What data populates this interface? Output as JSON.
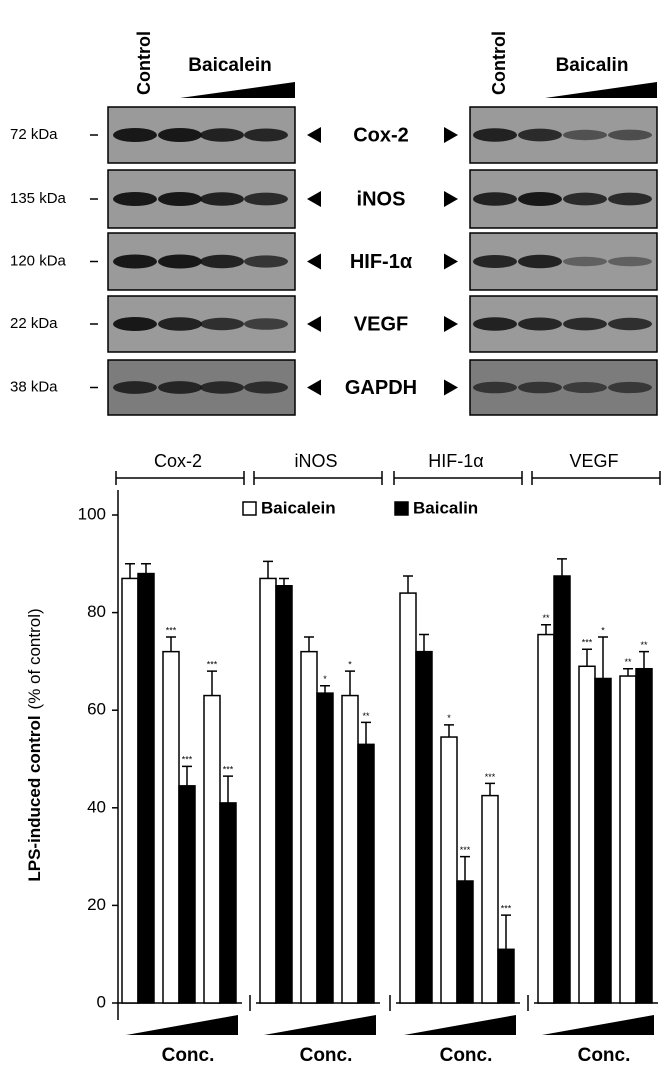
{
  "blots": {
    "left": {
      "control": "Control",
      "treatment": "Baicalein"
    },
    "right": {
      "control": "Control",
      "treatment": "Baicalin"
    },
    "markers": [
      "72 kDa",
      "135 kDa",
      "120 kDa",
      "22 kDa",
      "38 kDa"
    ],
    "proteins": [
      "Cox-2",
      "iNOS",
      "HIF-1α",
      "VEGF",
      "GAPDH"
    ]
  },
  "chart_data": {
    "type": "bar",
    "ylabel": "LPS-induced control",
    "ylabel_unit": "(% of control)",
    "xlabel": "Conc.",
    "groups": [
      "Cox-2",
      "iNOS",
      "HIF-1α",
      "VEGF"
    ],
    "ylim": [
      0,
      100
    ],
    "yticks": [
      0,
      20,
      40,
      60,
      80,
      100
    ],
    "legend": "top",
    "series": [
      {
        "name": "Baicalein",
        "color": "#ffffff",
        "values": [
          87,
          72,
          63,
          87,
          72,
          63,
          84,
          54.5,
          42.5,
          75.5,
          69,
          67
        ],
        "errors": [
          3,
          3,
          5,
          3.5,
          3,
          5,
          3.5,
          2.5,
          2.5,
          2,
          3.5,
          1.5
        ],
        "stars": [
          null,
          "***",
          "***",
          null,
          null,
          "*",
          null,
          "*",
          "***",
          "**",
          "***",
          "**"
        ]
      },
      {
        "name": "Baicalin",
        "color": "#000000",
        "values": [
          88,
          44.5,
          41,
          85.5,
          63.5,
          53,
          72,
          25,
          11,
          87.5,
          66.5,
          68.5
        ],
        "errors": [
          2,
          4,
          5.5,
          1.5,
          1.5,
          4.5,
          3.5,
          5,
          7,
          3.5,
          8.5,
          3.5
        ],
        "stars": [
          null,
          "***",
          "***",
          null,
          "*",
          "**",
          null,
          "***",
          "***",
          null,
          "*",
          "**"
        ]
      }
    ]
  }
}
